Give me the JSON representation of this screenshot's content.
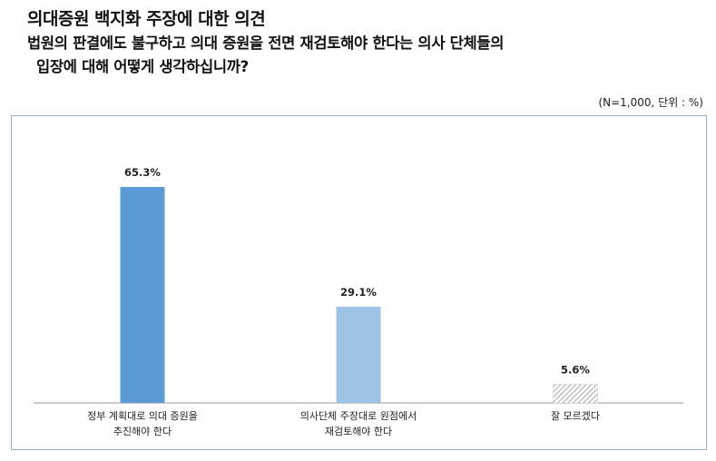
{
  "header": {
    "title": "의대증원 백지화 주장에 대한 의견",
    "question_line1": "법원의 판결에도 불구하고 의대 증원을 전면 재검토해야 한다는 의사 단체들의",
    "question_line2": "입장에 대해 어떻게 생각하십니까?",
    "unit_note": "(N=1,000, 단위 : %)"
  },
  "colors": {
    "bar1": "#5b9bd5",
    "bar2": "#9dc3e6",
    "bar3_hatch": "#bfbfbf",
    "frame": "#8fb0c9"
  },
  "chart_data": {
    "type": "bar",
    "categories": [
      [
        "정부 계획대로 의대 증원을",
        "추진해야 한다"
      ],
      [
        "의사단체 주장대로 원점에서",
        "재검토해야 한다"
      ],
      [
        "잘 모르겠다"
      ]
    ],
    "values": [
      65.3,
      29.1,
      5.6
    ],
    "value_labels": [
      "65.3%",
      "29.1%",
      "5.6%"
    ],
    "ylim": [
      0,
      100
    ]
  }
}
